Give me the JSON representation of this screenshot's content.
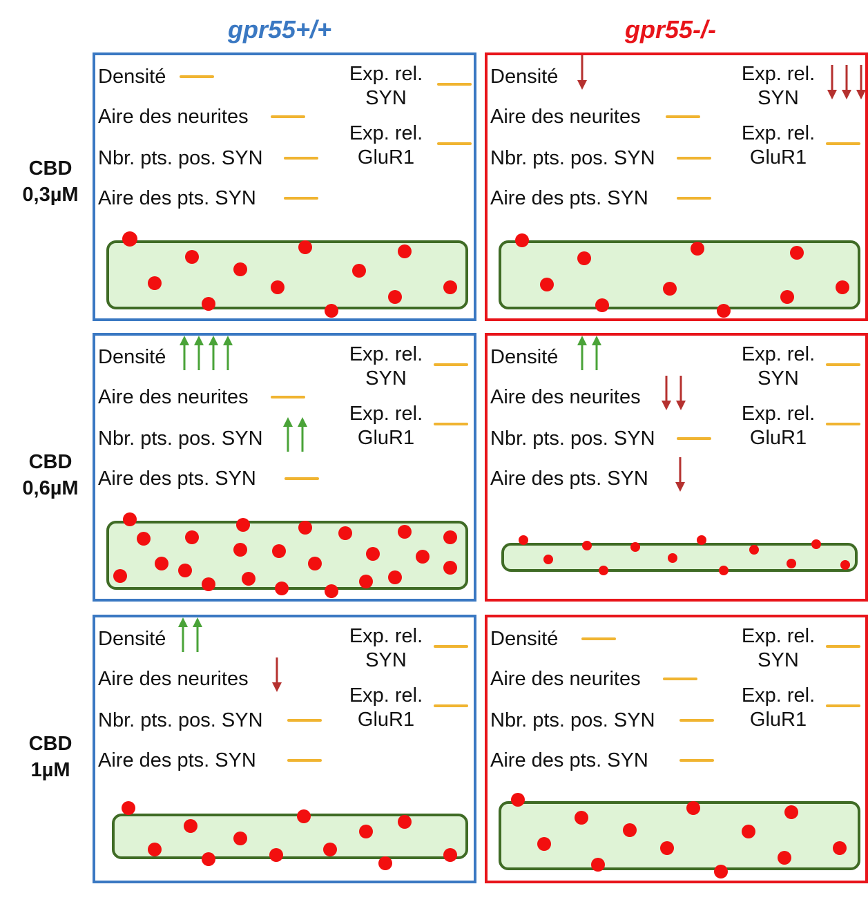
{
  "headers": {
    "wt": "gpr55+/+",
    "ko": "gpr55-/-"
  },
  "colors": {
    "wt": "#3a78c2",
    "ko": "#e8141a",
    "neutral": "#f0b431",
    "up": "#4aa338",
    "down": "#b5312f",
    "neurite_fill": "#dff3d6",
    "neurite_border": "#3f6b25",
    "puncta": "#f20f0f"
  },
  "rows": [
    {
      "label_line1": "CBD",
      "label_line2": "0,3µM"
    },
    {
      "label_line1": "CBD",
      "label_line2": "0,6µM"
    },
    {
      "label_line1": "CBD",
      "label_line2": "1µM"
    }
  ],
  "labels": {
    "density": "Densité",
    "neurite_area": "Aire des neurites",
    "syn_count": "Nbr. pts. pos. SYN",
    "syn_area": "Aire des pts.  SYN",
    "exp_syn_1": "Exp. rel.",
    "exp_syn_2": "SYN",
    "exp_glur_1": "Exp. rel.",
    "exp_glur_2": "GluR1"
  },
  "panels": [
    {
      "condition": "gpr55+/+",
      "dose": "CBD 0,3µM",
      "density": "neutral",
      "neurite_area": "neutral",
      "syn_count": "neutral",
      "syn_area": "neutral",
      "exp_syn": "neutral",
      "exp_glur1": "neutral"
    },
    {
      "condition": "gpr55-/-",
      "dose": "CBD 0,3µM",
      "density": "down-1",
      "neurite_area": "neutral",
      "syn_count": "neutral",
      "syn_area": "neutral",
      "exp_syn": "down-3",
      "exp_glur1": "neutral"
    },
    {
      "condition": "gpr55+/+",
      "dose": "CBD 0,6µM",
      "density": "up-4",
      "neurite_area": "neutral",
      "syn_count": "up-2",
      "syn_area": "neutral",
      "exp_syn": "neutral",
      "exp_glur1": "neutral"
    },
    {
      "condition": "gpr55-/-",
      "dose": "CBD 0,6µM",
      "density": "up-2",
      "neurite_area": "down-2",
      "syn_count": "neutral",
      "syn_area": "down-1",
      "exp_syn": "neutral",
      "exp_glur1": "neutral"
    },
    {
      "condition": "gpr55+/+",
      "dose": "CBD 1µM",
      "density": "up-2",
      "neurite_area": "down-1",
      "syn_count": "neutral",
      "syn_area": "neutral",
      "exp_syn": "neutral",
      "exp_glur1": "neutral"
    },
    {
      "condition": "gpr55-/-",
      "dose": "CBD 1µM",
      "density": "neutral",
      "neurite_area": "neutral",
      "syn_count": "neutral",
      "syn_area": "neutral",
      "exp_syn": "neutral",
      "exp_glur1": "neutral"
    }
  ]
}
